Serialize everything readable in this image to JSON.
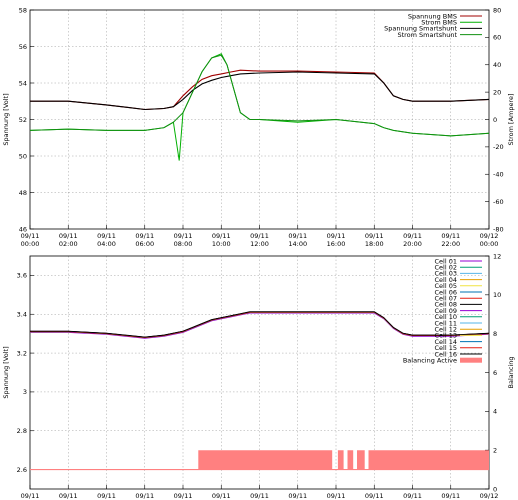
{
  "chart_data": [
    {
      "type": "line",
      "ylabel": "Spannung [Volt]",
      "y2label": "Strom [Ampere]",
      "ylim": [
        46,
        58
      ],
      "y2lim": [
        -80,
        80
      ],
      "y_ticks": [
        "46",
        "48",
        "50",
        "52",
        "54",
        "56",
        "58"
      ],
      "y2_ticks": [
        "-80",
        "-60",
        "-40",
        "-20",
        "0",
        "20",
        "40",
        "60",
        "80"
      ],
      "x_ticks": [
        [
          "09/11",
          "00:00"
        ],
        [
          "09/11",
          "02:00"
        ],
        [
          "09/11",
          "04:00"
        ],
        [
          "09/11",
          "06:00"
        ],
        [
          "09/11",
          "08:00"
        ],
        [
          "09/11",
          "10:00"
        ],
        [
          "09/11",
          "12:00"
        ],
        [
          "09/11",
          "14:00"
        ],
        [
          "09/11",
          "16:00"
        ],
        [
          "09/11",
          "18:00"
        ],
        [
          "09/11",
          "20:00"
        ],
        [
          "09/11",
          "22:00"
        ],
        [
          "09/12",
          "00:00"
        ]
      ],
      "x_unit": "hours since 09/11 00:00",
      "grid": true,
      "legend_position": "top-right",
      "series": [
        {
          "name": "Spannung BMS",
          "color": "#a00000",
          "axis": "y1",
          "x": [
            0,
            2,
            4,
            6,
            7,
            7.5,
            8,
            8.5,
            9,
            9.5,
            10,
            10.5,
            11,
            12,
            14,
            16,
            18,
            18.5,
            19,
            19.5,
            20,
            22,
            24
          ],
          "y": [
            53.0,
            53.0,
            52.8,
            52.55,
            52.6,
            52.7,
            53.3,
            53.8,
            54.2,
            54.4,
            54.5,
            54.6,
            54.7,
            54.65,
            54.65,
            54.6,
            54.55,
            54.0,
            53.3,
            53.1,
            53.0,
            53.0,
            53.1
          ]
        },
        {
          "name": "Strom BMS",
          "color": "#00b000",
          "axis": "y2",
          "x": [
            0,
            2,
            4,
            6,
            7,
            7.5,
            7.8,
            8,
            8.5,
            9,
            9.5,
            10,
            10.3,
            10.6,
            11,
            11.5,
            12,
            14,
            16,
            18,
            18.5,
            19,
            20,
            22,
            24
          ],
          "y": [
            -8,
            -7,
            -8,
            -8,
            -6,
            -2,
            -30,
            5,
            20,
            35,
            45,
            48,
            40,
            25,
            5,
            0,
            0,
            -2,
            0,
            -3,
            -6,
            -8,
            -10,
            -12,
            -10
          ]
        },
        {
          "name": "Spannung Smartshunt",
          "color": "#000000",
          "axis": "y1",
          "x": [
            0,
            2,
            4,
            6,
            7,
            7.5,
            8,
            8.5,
            9,
            9.5,
            10,
            10.5,
            11,
            12,
            14,
            16,
            18,
            18.5,
            19,
            19.5,
            20,
            22,
            24
          ],
          "y": [
            53.0,
            53.0,
            52.8,
            52.55,
            52.6,
            52.7,
            53.1,
            53.6,
            53.95,
            54.15,
            54.3,
            54.4,
            54.5,
            54.55,
            54.6,
            54.55,
            54.5,
            54.0,
            53.3,
            53.1,
            53.0,
            53.0,
            53.1
          ]
        },
        {
          "name": "Strom Smartshunt",
          "color": "#109010",
          "axis": "y2",
          "x": [
            0,
            2,
            4,
            6,
            7,
            7.5,
            8,
            8.5,
            9,
            9.5,
            10,
            10.3,
            10.6,
            11,
            11.5,
            12,
            14,
            16,
            18,
            18.5,
            19,
            20,
            22,
            24
          ],
          "y": [
            -8,
            -7,
            -8,
            -8,
            -6,
            -2,
            5,
            20,
            35,
            45,
            47,
            40,
            25,
            5,
            0,
            0,
            -1,
            0,
            -3,
            -6,
            -8,
            -10,
            -12,
            -10
          ]
        }
      ]
    },
    {
      "type": "line",
      "ylabel": "Spannung [Volt]",
      "y2label": "Balancing",
      "ylim": [
        2.5,
        3.7
      ],
      "y2lim": [
        0,
        12
      ],
      "y_ticks": [
        "2.6",
        "2.8",
        "3",
        "3.2",
        "3.4",
        "3.6"
      ],
      "y2_ticks": [
        "0",
        "2",
        "4",
        "6",
        "8",
        "10",
        "12"
      ],
      "x_ticks": [
        [
          "09/11",
          "00:00"
        ],
        [
          "09/11",
          "02:00"
        ],
        [
          "09/11",
          "04:00"
        ],
        [
          "09/11",
          "06:00"
        ],
        [
          "09/11",
          "08:00"
        ],
        [
          "09/11",
          "10:00"
        ],
        [
          "09/11",
          "12:00"
        ],
        [
          "09/11",
          "14:00"
        ],
        [
          "09/11",
          "16:00"
        ],
        [
          "09/11",
          "18:00"
        ],
        [
          "09/11",
          "20:00"
        ],
        [
          "09/11",
          "22:00"
        ],
        [
          "09/12",
          "00:00"
        ]
      ],
      "x_unit": "hours since 09/11 00:00",
      "grid": true,
      "legend_position": "top-right",
      "cell_x": [
        0,
        2,
        4,
        6,
        7,
        8,
        8.5,
        9,
        9.5,
        10,
        10.5,
        11,
        11.5,
        12,
        13,
        14,
        15,
        16,
        17,
        18,
        18.5,
        19,
        19.5,
        20,
        22,
        24
      ],
      "cell_base": [
        3.31,
        3.31,
        3.3,
        3.28,
        3.29,
        3.31,
        3.33,
        3.35,
        3.37,
        3.38,
        3.39,
        3.4,
        3.41,
        3.41,
        3.41,
        3.41,
        3.41,
        3.41,
        3.41,
        3.41,
        3.38,
        3.33,
        3.3,
        3.29,
        3.29,
        3.3
      ],
      "series": [
        {
          "name": "Cell 01",
          "color": "#9400d3",
          "offset": 0.002
        },
        {
          "name": "Cell 02",
          "color": "#009e73",
          "offset": 0.001
        },
        {
          "name": "Cell 03",
          "color": "#56b4e9",
          "offset": 0.0
        },
        {
          "name": "Cell 04",
          "color": "#e69f00",
          "offset": 0.0
        },
        {
          "name": "Cell 05",
          "color": "#f0e442",
          "offset": 0.0
        },
        {
          "name": "Cell 06",
          "color": "#0072b2",
          "offset": 0.0
        },
        {
          "name": "Cell 07",
          "color": "#e51e10",
          "offset": 0.0
        },
        {
          "name": "Cell 08",
          "color": "#000000",
          "offset": 0.003
        },
        {
          "name": "Cell 09",
          "color": "#9400d3",
          "offset": -0.004
        },
        {
          "name": "Cell 10",
          "color": "#009e73",
          "offset": 0.0
        },
        {
          "name": "Cell 11",
          "color": "#56b4e9",
          "offset": 0.0
        },
        {
          "name": "Cell 12",
          "color": "#e69f00",
          "offset": 0.0
        },
        {
          "name": "Cell 13",
          "color": "#f0e442",
          "offset": 0.0
        },
        {
          "name": "Cell 14",
          "color": "#0072b2",
          "offset": 0.0
        },
        {
          "name": "Cell 15",
          "color": "#e51e10",
          "offset": 0.0
        },
        {
          "name": "Cell 16",
          "color": "#000000",
          "offset": 0.002
        }
      ],
      "balancing": {
        "name": "Balancing Active",
        "color": "#ff8080",
        "base_level": 1,
        "active_level": 2,
        "x": [
          0,
          8.8,
          8.8,
          15.8,
          15.8,
          16.1,
          16.1,
          16.4,
          16.4,
          16.6,
          16.6,
          16.9,
          16.9,
          17.1,
          17.1,
          17.5,
          17.5,
          17.7,
          17.7,
          24
        ],
        "y": [
          1,
          1,
          2,
          2,
          1,
          1,
          2,
          2,
          1,
          1,
          2,
          2,
          1,
          1,
          2,
          2,
          1,
          1,
          2,
          2
        ]
      }
    }
  ]
}
